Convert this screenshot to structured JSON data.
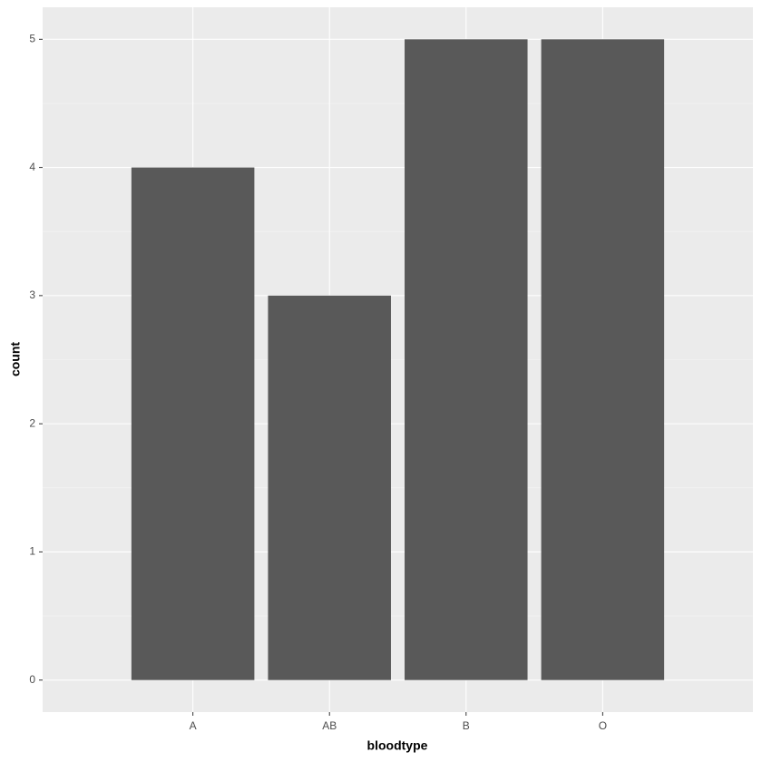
{
  "chart_data": {
    "type": "bar",
    "x_label": "bloodtype",
    "y_label": "count",
    "categories": [
      "A",
      "AB",
      "B",
      "O"
    ],
    "values": [
      4,
      3,
      5,
      5
    ],
    "color": "#595959",
    "ylim": [
      -0.25,
      5.25
    ],
    "yticks": [
      0,
      1,
      2,
      3,
      4,
      5
    ],
    "grid": true
  }
}
